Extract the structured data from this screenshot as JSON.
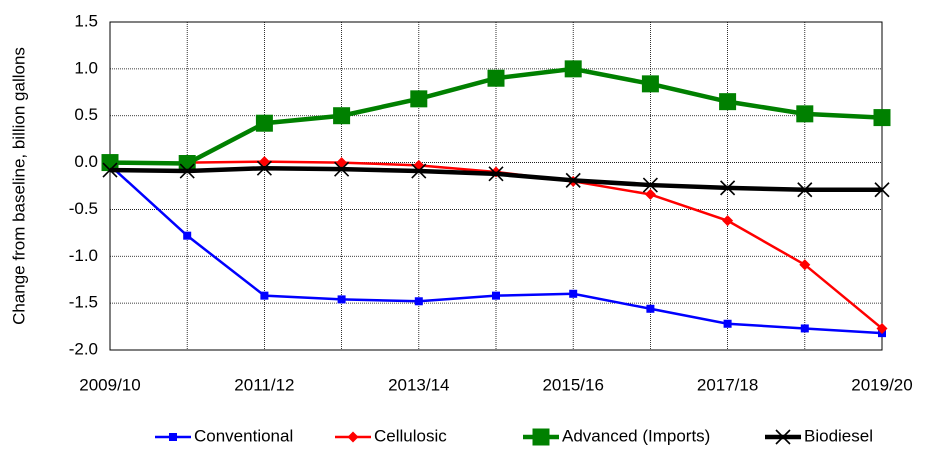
{
  "chart_data": {
    "type": "line",
    "y_label": "Change from baseline, billion gallons",
    "categories": [
      "2009/10",
      null,
      "2011/12",
      null,
      "2013/14",
      null,
      "2015/16",
      null,
      "2017/18",
      null,
      "2019/20"
    ],
    "series": [
      {
        "name": "Conventional",
        "color": "#0000ff",
        "marker": "square",
        "values": [
          -0.03,
          -0.78,
          -1.42,
          -1.46,
          -1.48,
          -1.42,
          -1.4,
          -1.56,
          -1.72,
          -1.77,
          -1.82
        ]
      },
      {
        "name": "Cellulosic",
        "color": "#ff0000",
        "marker": "diamond",
        "values": [
          null,
          0.0,
          0.01,
          0.0,
          -0.03,
          -0.1,
          -0.2,
          -0.34,
          -0.62,
          -1.09,
          -1.77
        ]
      },
      {
        "name": "Advanced (Imports)",
        "color": "#008000",
        "marker": "big-square",
        "values": [
          0.0,
          -0.01,
          0.42,
          0.5,
          0.68,
          0.9,
          1.0,
          0.84,
          0.65,
          0.52,
          0.48
        ]
      },
      {
        "name": "Biodiesel",
        "color": "#000000",
        "marker": "x",
        "values": [
          -0.08,
          -0.09,
          -0.06,
          -0.07,
          -0.09,
          -0.12,
          -0.19,
          -0.24,
          -0.27,
          -0.29,
          -0.29
        ]
      }
    ],
    "ylim": [
      -2.0,
      1.5
    ],
    "yticks": [
      {
        "value": -2.0,
        "label": "-2.0"
      },
      -1.5,
      {
        "value": -1.0,
        "label": "-1.0"
      },
      -0.5,
      {
        "value": 0.0,
        "label": "0.0"
      },
      0.5,
      {
        "value": 1.0,
        "label": "1.0"
      },
      1.5
    ],
    "grid": true,
    "legend": "bottom"
  }
}
